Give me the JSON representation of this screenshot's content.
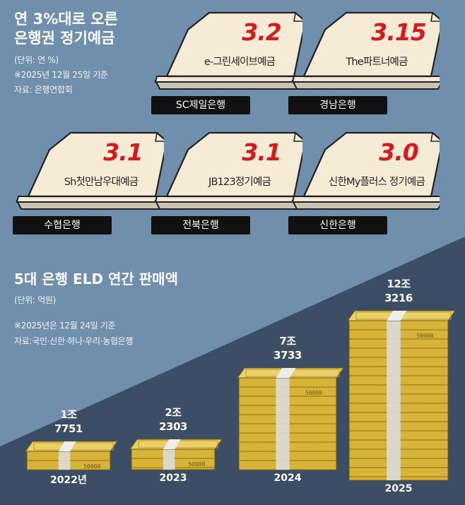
{
  "top": {
    "title_line1": "연 3%대로 오른",
    "title_line2": "은행권 정기예금",
    "unit": "(단위: 연 %)",
    "basis": "※2025년 12월 25일 기준",
    "source": "자료: 은행연합회"
  },
  "bottom": {
    "title": "5대 은행 ELD 연간 판매액",
    "unit": "(단위: 억원)",
    "basis": "※2025년은 12월 24일 기준",
    "source": "자료:국민·신한·하나·우리·농협은행"
  },
  "deposits": [
    {
      "rate": "3.2",
      "product": "e-그린세이브예금",
      "bank": "SC제일은행"
    },
    {
      "rate": "3.15",
      "product": "The파트너예금",
      "bank": "경남은행"
    },
    {
      "rate": "3.1",
      "product": "Sh첫만남우대예금",
      "bank": "수협은행"
    },
    {
      "rate": "3.1",
      "product": "JB123정기예금",
      "bank": "전북은행"
    },
    {
      "rate": "3.0",
      "product": "신한My플러스 정기예금",
      "bank": "신한은행"
    }
  ],
  "bill_label": "50000",
  "colors": {
    "accent": "#d71920",
    "bill_gold": "#e2c24a",
    "band": "#d9d9d9",
    "sky": "#6f8fac",
    "dark": "#3c4d66"
  },
  "chart_data": [
    {
      "type": "bar",
      "categories": [
        "SC제일은행",
        "경남은행",
        "수협은행",
        "전북은행",
        "신한은행"
      ],
      "series": [
        {
          "values": [
            3.2,
            3.15,
            3.1,
            3.1,
            3.0
          ]
        }
      ],
      "title": "연 3%대로 오른 은행권 정기예금",
      "unit": "연 %"
    },
    {
      "type": "bar",
      "title": "5대 은행 ELD 연간 판매액",
      "unit": "억원",
      "categories": [
        "2022년",
        "2023",
        "2024",
        "2025"
      ],
      "values": [
        17751,
        22303,
        73733,
        123216
      ],
      "value_labels": [
        [
          "1조",
          "7751"
        ],
        [
          "2조",
          "2303"
        ],
        [
          "7조",
          "3733"
        ],
        [
          "12조",
          "3216"
        ]
      ]
    }
  ]
}
